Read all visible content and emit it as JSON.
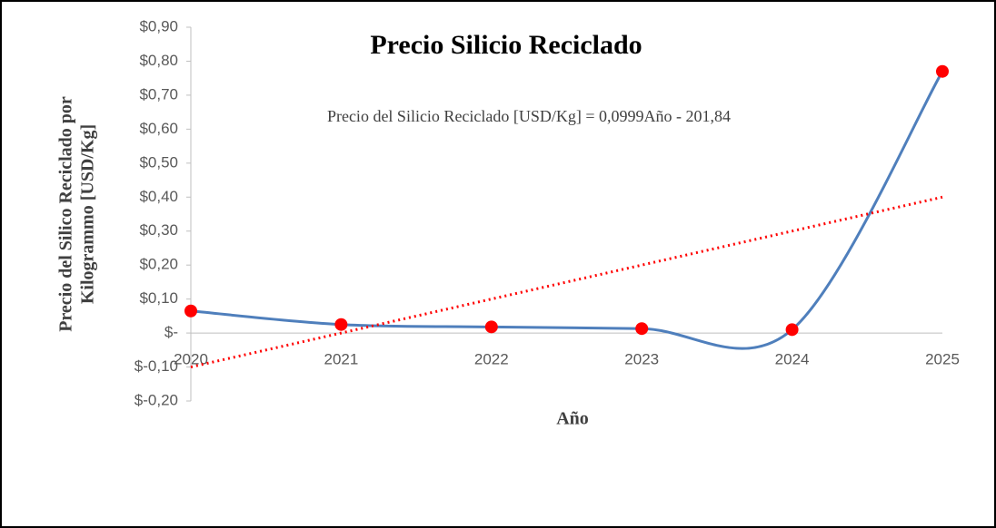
{
  "chart_data": {
    "type": "line",
    "title": "Precio Silicio Reciclado",
    "annotation": "Precio del Silicio Reciclado [USD/Kg] = 0,0999Año - 201,84",
    "x_label": "Año",
    "y_label": [
      "Precio del Silico Reciclado por",
      "Kilogrammo [USD/Kg]"
    ],
    "categories": [
      "2020",
      "2021",
      "2022",
      "2023",
      "2024",
      "2025"
    ],
    "series": [
      {
        "color": "#4f7fbc",
        "marker_color": "#ff0000",
        "values": [
          0.065,
          0.025,
          0.018,
          0.013,
          0.01,
          0.77
        ]
      }
    ],
    "trendline": {
      "color": "#ff0000",
      "values": [
        -0.1,
        0.4
      ]
    },
    "ylim": [
      -0.2,
      0.9
    ],
    "yticks": [
      {
        "value": -0.2,
        "label": "$-0,20"
      },
      {
        "value": -0.1,
        "label": "$-0,10"
      },
      {
        "value": 0,
        "label": "$-"
      },
      {
        "value": 0.1,
        "label": "$0,10"
      },
      {
        "value": 0.2,
        "label": "$0,20"
      },
      {
        "value": 0.3,
        "label": "$0,30"
      },
      {
        "value": 0.4,
        "label": "$0,40"
      },
      {
        "value": 0.5,
        "label": "$0,50"
      },
      {
        "value": 0.6,
        "label": "$0,60"
      },
      {
        "value": 0.7,
        "label": "$0,70"
      },
      {
        "value": 0.8,
        "label": "$0,80"
      },
      {
        "value": 0.9,
        "label": "$0,90"
      }
    ]
  }
}
